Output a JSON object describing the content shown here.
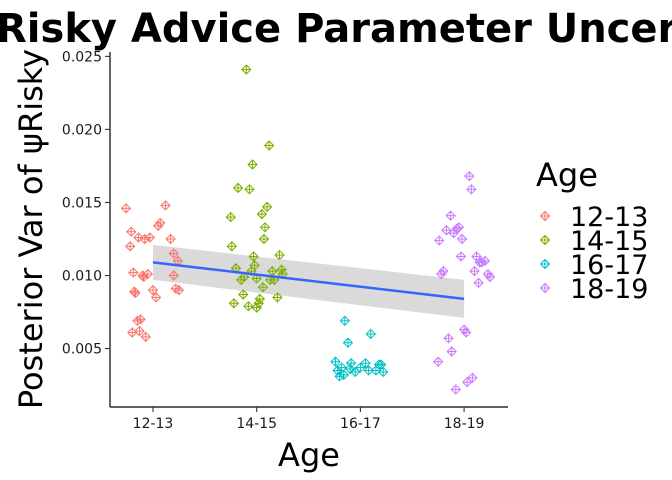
{
  "chart_data": {
    "type": "scatter",
    "title": "Risky Advice Parameter Uncert",
    "xlabel": "Age",
    "ylabel": "Posterior Var of ψRisky",
    "categories": [
      "12-13",
      "14-15",
      "16-17",
      "18-19"
    ],
    "ylim": [
      0.001,
      0.0253
    ],
    "yticks": [
      0.005,
      0.01,
      0.015,
      0.02,
      0.025
    ],
    "ytick_labels": [
      "0.005",
      "0.010",
      "0.015",
      "0.020",
      "0.025"
    ],
    "grid": false,
    "legend": {
      "title": "Age",
      "position": "right"
    },
    "marker": "diamond-plus",
    "colors": {
      "12-13": "#F8766D",
      "14-15": "#7CAE00",
      "16-17": "#00BFC4",
      "18-19": "#C77CFF"
    },
    "regression": {
      "x": [
        1,
        4
      ],
      "y": [
        0.0109,
        0.0084
      ],
      "ci_lower": [
        0.0097,
        0.0071
      ],
      "ci_upper": [
        0.0121,
        0.0097
      ],
      "line_color": "#3366FF",
      "band_color": "#D3D3D3"
    },
    "series": [
      {
        "name": "12-13",
        "x": [
          0.74,
          0.79,
          0.78,
          0.81,
          0.83,
          0.85,
          0.87,
          0.9,
          0.92,
          0.93,
          0.95,
          0.97,
          1.0,
          1.03,
          1.05,
          1.07,
          1.12,
          1.17,
          1.2,
          1.22,
          1.25,
          1.24,
          1.2,
          0.8,
          0.82,
          0.86,
          0.88,
          0.91
        ],
        "y": [
          0.0146,
          0.013,
          0.012,
          0.0102,
          0.0088,
          0.0069,
          0.0062,
          0.01,
          0.0125,
          0.0058,
          0.0101,
          0.0126,
          0.009,
          0.0085,
          0.0134,
          0.0136,
          0.0148,
          0.0125,
          0.0115,
          0.0091,
          0.009,
          0.011,
          0.01,
          0.0061,
          0.0089,
          0.0126,
          0.007,
          0.0099
        ]
      },
      {
        "name": "14-15",
        "x": [
          0.75,
          0.76,
          0.78,
          0.8,
          0.82,
          0.85,
          0.87,
          0.9,
          0.93,
          0.95,
          0.96,
          0.97,
          0.98,
          1.0,
          1.02,
          1.03,
          1.05,
          1.07,
          1.08,
          1.1,
          1.12,
          1.15,
          1.17,
          1.2,
          1.22,
          1.24,
          1.25,
          0.88,
          0.92,
          1.0,
          1.06,
          1.13
        ],
        "y": [
          0.014,
          0.012,
          0.0081,
          0.0105,
          0.016,
          0.0097,
          0.0087,
          0.0241,
          0.0159,
          0.0103,
          0.0176,
          0.0113,
          0.0107,
          0.0098,
          0.0081,
          0.0084,
          0.0142,
          0.0125,
          0.0133,
          0.0147,
          0.0189,
          0.0103,
          0.0097,
          0.0085,
          0.0114,
          0.0104,
          0.0101,
          0.0099,
          0.0079,
          0.0078,
          0.0092,
          0.0097
        ]
      },
      {
        "name": "16-17",
        "x": [
          0.76,
          0.78,
          0.8,
          0.82,
          0.85,
          0.88,
          0.91,
          0.95,
          1.05,
          1.1,
          1.15,
          1.2,
          1.22,
          0.9,
          1.0,
          1.18,
          1.08,
          0.84
        ],
        "y": [
          0.0041,
          0.0035,
          0.0031,
          0.0037,
          0.0069,
          0.0054,
          0.004,
          0.0034,
          0.004,
          0.006,
          0.0035,
          0.0039,
          0.0034,
          0.0036,
          0.0037,
          0.0039,
          0.0035,
          0.0032
        ]
      },
      {
        "name": "18-19",
        "x": [
          0.75,
          0.76,
          0.78,
          0.8,
          0.83,
          0.85,
          0.87,
          0.88,
          0.9,
          0.92,
          0.93,
          0.95,
          0.97,
          1.0,
          1.02,
          1.03,
          1.05,
          1.07,
          1.1,
          1.12,
          1.14,
          1.17,
          1.2,
          1.23,
          1.25,
          0.98,
          1.08,
          1.15
        ],
        "y": [
          0.0041,
          0.0124,
          0.0101,
          0.0103,
          0.0131,
          0.0057,
          0.0141,
          0.0048,
          0.0129,
          0.0022,
          0.0132,
          0.0133,
          0.0113,
          0.0063,
          0.0061,
          0.0027,
          0.0168,
          0.0159,
          0.0103,
          0.0113,
          0.0095,
          0.0109,
          0.011,
          0.0101,
          0.0099,
          0.0125,
          0.003,
          0.0109
        ]
      }
    ]
  }
}
